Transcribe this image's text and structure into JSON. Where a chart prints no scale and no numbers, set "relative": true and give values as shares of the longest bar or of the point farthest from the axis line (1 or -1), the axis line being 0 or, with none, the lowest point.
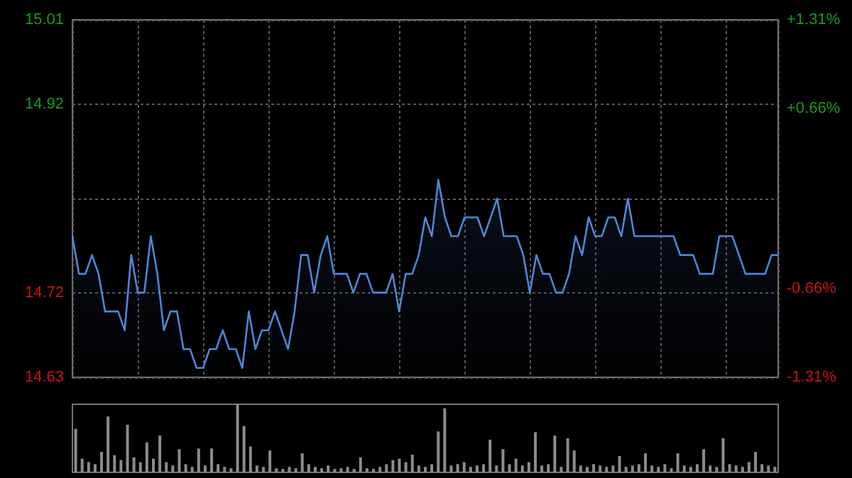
{
  "chart_data": [
    {
      "type": "area",
      "categories": [
        null,
        null,
        null,
        null,
        null,
        null,
        null,
        null,
        null,
        null,
        null,
        null,
        null,
        null,
        null,
        null,
        null,
        null,
        null,
        null,
        null,
        null,
        null,
        null,
        null,
        null,
        null,
        null,
        null,
        null,
        null,
        null,
        null,
        null,
        null,
        null,
        null,
        null,
        null,
        null,
        null,
        null,
        null,
        null,
        null,
        null,
        null,
        null,
        null,
        null,
        null,
        null,
        null,
        null,
        null,
        null,
        null,
        null,
        null,
        null,
        null,
        null,
        null,
        null,
        null,
        null,
        null,
        null,
        null,
        null,
        null,
        null,
        null,
        null,
        null,
        null,
        null,
        null,
        null,
        null,
        null,
        null,
        null,
        null,
        null,
        null,
        null,
        null,
        null,
        null,
        null,
        null,
        null,
        null,
        null,
        null,
        null,
        null,
        null,
        null,
        null,
        null,
        null,
        null,
        null,
        null,
        null,
        null,
        null
      ],
      "series": [
        {
          "color": "#4f86d8",
          "values": [
            14.78,
            14.74,
            14.74,
            14.76,
            14.74,
            14.7,
            14.7,
            14.7,
            14.68,
            14.76,
            14.72,
            14.72,
            14.78,
            14.74,
            14.68,
            14.7,
            14.7,
            14.66,
            14.66,
            14.64,
            14.64,
            14.66,
            14.66,
            14.68,
            14.66,
            14.66,
            14.64,
            14.7,
            14.66,
            14.68,
            14.68,
            14.7,
            14.68,
            14.66,
            14.7,
            14.76,
            14.76,
            14.72,
            14.76,
            14.78,
            14.74,
            14.74,
            14.74,
            14.72,
            14.74,
            14.74,
            14.72,
            14.72,
            14.72,
            14.74,
            14.7,
            14.74,
            14.74,
            14.76,
            14.8,
            14.78,
            14.84,
            14.8,
            14.78,
            14.78,
            14.8,
            14.8,
            14.8,
            14.78,
            14.8,
            14.82,
            14.78,
            14.78,
            14.78,
            14.76,
            14.72,
            14.76,
            14.74,
            14.74,
            14.72,
            14.72,
            14.74,
            14.78,
            14.76,
            14.8,
            14.78,
            14.78,
            14.8,
            14.8,
            14.78,
            14.82,
            14.78,
            14.78,
            14.78,
            14.78,
            14.78,
            14.78,
            14.78,
            14.76,
            14.76,
            14.76,
            14.74,
            14.74,
            14.74,
            14.78,
            14.78,
            14.78,
            14.76,
            14.74,
            14.74,
            14.74,
            14.74,
            14.76,
            14.76
          ]
        }
      ],
      "ylim": [
        14.63,
        15.01
      ],
      "yticks": [
        14.63,
        14.72,
        {
          "value": 14.82,
          "label": null
        },
        14.92,
        15.01
      ],
      "y2lim": [
        -1.31,
        1.31
      ],
      "y2ticks": [
        {
          "value": -1.31,
          "label": "-1.31%"
        },
        {
          "value": -0.66,
          "label": "-0.66%"
        },
        {
          "value": 0.66,
          "label": "+0.66%"
        },
        {
          "value": 1.31,
          "label": "+1.31%"
        }
      ],
      "tick_labels": "y",
      "grid": true
    },
    {
      "type": "bar",
      "relative": true,
      "categories": [
        null,
        null,
        null,
        null,
        null,
        null,
        null,
        null,
        null,
        null,
        null,
        null,
        null,
        null,
        null,
        null,
        null,
        null,
        null,
        null,
        null,
        null,
        null,
        null,
        null,
        null,
        null,
        null,
        null,
        null,
        null,
        null,
        null,
        null,
        null,
        null,
        null,
        null,
        null,
        null,
        null,
        null,
        null,
        null,
        null,
        null,
        null,
        null,
        null,
        null,
        null,
        null,
        null,
        null,
        null,
        null,
        null,
        null,
        null,
        null,
        null,
        null,
        null,
        null,
        null,
        null,
        null,
        null,
        null,
        null,
        null,
        null,
        null,
        null,
        null,
        null,
        null,
        null,
        null,
        null,
        null,
        null,
        null,
        null,
        null,
        null,
        null,
        null,
        null,
        null,
        null,
        null,
        null,
        null,
        null,
        null,
        null,
        null,
        null,
        null,
        null,
        null,
        null,
        null,
        null,
        null,
        null,
        null,
        null
      ],
      "series": [
        {
          "color": "#8c8c8c",
          "values": [
            0.64,
            0.2,
            0.15,
            0.12,
            0.3,
            0.82,
            0.25,
            0.18,
            0.7,
            0.22,
            0.15,
            0.44,
            0.2,
            0.54,
            0.15,
            0.1,
            0.34,
            0.12,
            0.08,
            0.35,
            0.1,
            0.35,
            0.12,
            0.08,
            0.06,
            1.0,
            0.68,
            0.38,
            0.1,
            0.08,
            0.32,
            0.06,
            0.05,
            0.08,
            0.06,
            0.28,
            0.12,
            0.08,
            0.06,
            0.1,
            0.05,
            0.06,
            0.08,
            0.05,
            0.22,
            0.06,
            0.05,
            0.08,
            0.12,
            0.18,
            0.2,
            0.15,
            0.26,
            0.1,
            0.08,
            0.12,
            0.6,
            0.94,
            0.1,
            0.12,
            0.15,
            0.08,
            0.1,
            0.12,
            0.48,
            0.1,
            0.34,
            0.12,
            0.2,
            0.1,
            0.15,
            0.59,
            0.1,
            0.12,
            0.54,
            0.08,
            0.5,
            0.32,
            0.1,
            0.08,
            0.12,
            0.1,
            0.08,
            0.1,
            0.24,
            0.08,
            0.1,
            0.12,
            0.28,
            0.1,
            0.08,
            0.12,
            0.06,
            0.28,
            0.1,
            0.08,
            0.12,
            0.34,
            0.1,
            0.08,
            0.5,
            0.12,
            0.1,
            0.08,
            0.15,
            0.3,
            0.12,
            0.1,
            0.08
          ]
        }
      ],
      "tick_labels": false
    }
  ]
}
